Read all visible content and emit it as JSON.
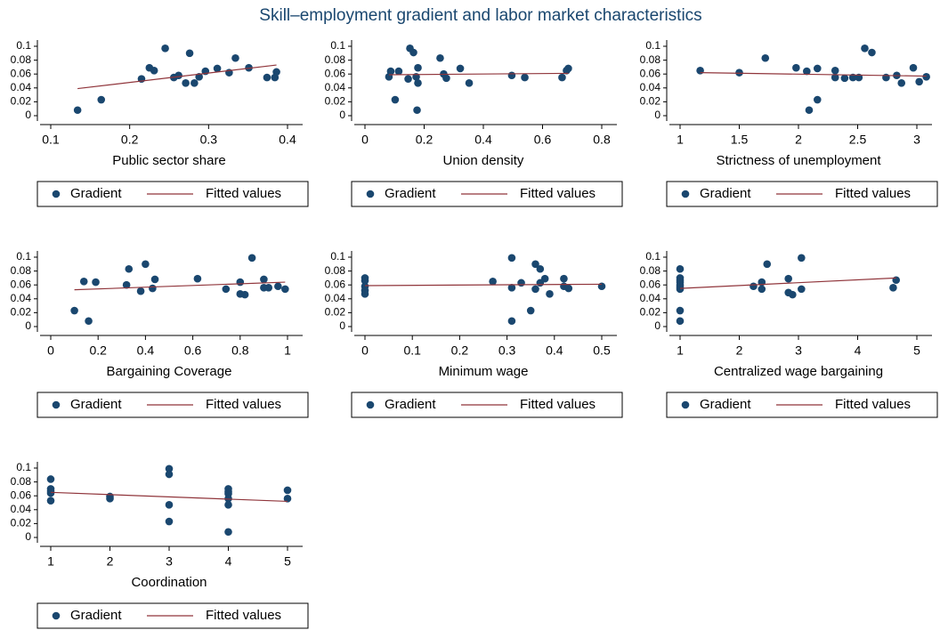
{
  "title": "Skill–employment gradient and labor market characteristics",
  "chart_data": [
    {
      "type": "scatter",
      "xlabel": "Public sector share",
      "xlim": [
        0.1,
        0.4
      ],
      "xticks": [
        0.1,
        0.2,
        0.3,
        0.4
      ],
      "ylim": [
        0,
        0.1
      ],
      "yticks": [
        0,
        0.02,
        0.04,
        0.06,
        0.08,
        0.1
      ],
      "legend": "bottom",
      "series": [
        {
          "name": "Gradient",
          "color": "#1a476f",
          "x": [
            0.134,
            0.164,
            0.215,
            0.225,
            0.231,
            0.245,
            0.256,
            0.262,
            0.271,
            0.276,
            0.282,
            0.288,
            0.296,
            0.311,
            0.326,
            0.334,
            0.351,
            0.374,
            0.384,
            0.386
          ],
          "values": [
            0.008,
            0.023,
            0.053,
            0.069,
            0.065,
            0.097,
            0.055,
            0.058,
            0.047,
            0.09,
            0.047,
            0.056,
            0.064,
            0.068,
            0.062,
            0.083,
            0.069,
            0.055,
            0.055,
            0.063
          ]
        },
        {
          "name": "Fitted values",
          "color": "#90353b",
          "type": "line",
          "x": [
            0.134,
            0.386
          ],
          "values": [
            0.039,
            0.073
          ]
        }
      ]
    },
    {
      "type": "scatter",
      "xlabel": "Union density",
      "xlim": [
        0,
        0.8
      ],
      "xticks": [
        0,
        0.2,
        0.4,
        0.6,
        0.8
      ],
      "ylim": [
        0,
        0.1
      ],
      "yticks": [
        0,
        0.02,
        0.04,
        0.06,
        0.08,
        0.1
      ],
      "legend": "bottom",
      "series": [
        {
          "name": "Gradient",
          "color": "#1a476f",
          "x": [
            0.081,
            0.087,
            0.102,
            0.114,
            0.146,
            0.152,
            0.164,
            0.173,
            0.176,
            0.179,
            0.179,
            0.254,
            0.266,
            0.275,
            0.322,
            0.352,
            0.496,
            0.54,
            0.666,
            0.681,
            0.687
          ],
          "values": [
            0.056,
            0.064,
            0.023,
            0.064,
            0.053,
            0.097,
            0.091,
            0.056,
            0.008,
            0.069,
            0.047,
            0.083,
            0.06,
            0.054,
            0.068,
            0.047,
            0.058,
            0.055,
            0.055,
            0.065,
            0.068
          ]
        },
        {
          "name": "Fitted values",
          "color": "#90353b",
          "type": "line",
          "x": [
            0.081,
            0.687
          ],
          "values": [
            0.059,
            0.061
          ]
        }
      ]
    },
    {
      "type": "scatter",
      "xlabel": "Strictness of unemployment",
      "xlim": [
        1,
        3
      ],
      "xticks": [
        1,
        1.5,
        2,
        2.5,
        3
      ],
      "ylim": [
        0,
        0.1
      ],
      "yticks": [
        0,
        0.02,
        0.04,
        0.06,
        0.08,
        0.1
      ],
      "legend": "bottom",
      "series": [
        {
          "name": "Gradient",
          "color": "#1a476f",
          "x": [
            1.17,
            1.5,
            1.72,
            1.98,
            2.07,
            2.09,
            2.16,
            2.16,
            2.31,
            2.31,
            2.39,
            2.46,
            2.51,
            2.56,
            2.62,
            2.74,
            2.83,
            2.87,
            2.97,
            3.02,
            3.08
          ],
          "values": [
            0.065,
            0.062,
            0.083,
            0.069,
            0.064,
            0.008,
            0.068,
            0.023,
            0.065,
            0.055,
            0.054,
            0.055,
            0.055,
            0.097,
            0.091,
            0.055,
            0.058,
            0.047,
            0.069,
            0.049,
            0.056
          ]
        },
        {
          "name": "Fitted values",
          "color": "#90353b",
          "type": "line",
          "x": [
            1.17,
            3.08
          ],
          "values": [
            0.062,
            0.057
          ]
        }
      ]
    },
    {
      "type": "scatter",
      "xlabel": "Bargaining Coverage",
      "xlim": [
        0,
        1
      ],
      "xticks": [
        0,
        0.2,
        0.4,
        0.6,
        0.8,
        1
      ],
      "ylim": [
        0,
        0.1
      ],
      "yticks": [
        0,
        0.02,
        0.04,
        0.06,
        0.08,
        0.1
      ],
      "legend": "bottom",
      "series": [
        {
          "name": "Gradient",
          "color": "#1a476f",
          "x": [
            0.1,
            0.14,
            0.16,
            0.19,
            0.32,
            0.33,
            0.38,
            0.4,
            0.43,
            0.44,
            0.62,
            0.74,
            0.8,
            0.8,
            0.82,
            0.85,
            0.9,
            0.9,
            0.92,
            0.96,
            0.99
          ],
          "values": [
            0.023,
            0.065,
            0.008,
            0.064,
            0.06,
            0.083,
            0.051,
            0.09,
            0.055,
            0.068,
            0.069,
            0.054,
            0.064,
            0.047,
            0.046,
            0.099,
            0.068,
            0.056,
            0.056,
            0.058,
            0.054
          ]
        },
        {
          "name": "Fitted values",
          "color": "#90353b",
          "type": "line",
          "x": [
            0.1,
            0.99
          ],
          "values": [
            0.053,
            0.064
          ]
        }
      ]
    },
    {
      "type": "scatter",
      "xlabel": "Minimum wage",
      "xlim": [
        0,
        0.5
      ],
      "xticks": [
        0,
        0.1,
        0.2,
        0.3,
        0.4,
        0.5
      ],
      "ylim": [
        0,
        0.1
      ],
      "yticks": [
        0,
        0.02,
        0.04,
        0.06,
        0.08,
        0.1
      ],
      "legend": "bottom",
      "series": [
        {
          "name": "Gradient",
          "color": "#1a476f",
          "x": [
            0,
            0,
            0,
            0,
            0,
            0.27,
            0.31,
            0.31,
            0.31,
            0.33,
            0.35,
            0.36,
            0.36,
            0.37,
            0.37,
            0.38,
            0.39,
            0.42,
            0.42,
            0.43,
            0.5
          ],
          "values": [
            0.07,
            0.066,
            0.058,
            0.052,
            0.047,
            0.065,
            0.099,
            0.056,
            0.008,
            0.063,
            0.023,
            0.09,
            0.054,
            0.083,
            0.063,
            0.069,
            0.047,
            0.069,
            0.058,
            0.055,
            0.058
          ]
        },
        {
          "name": "Fitted values",
          "color": "#90353b",
          "type": "line",
          "x": [
            0,
            0.5
          ],
          "values": [
            0.059,
            0.061
          ]
        }
      ]
    },
    {
      "type": "scatter",
      "xlabel": "Centralized wage bargaining",
      "xlim": [
        1,
        5
      ],
      "xticks": [
        1,
        2,
        3,
        4,
        5
      ],
      "ylim": [
        0,
        0.1
      ],
      "yticks": [
        0,
        0.02,
        0.04,
        0.06,
        0.08,
        0.1
      ],
      "legend": "bottom",
      "series": [
        {
          "name": "Gradient",
          "color": "#1a476f",
          "x": [
            1,
            1,
            1,
            1,
            1,
            1,
            1,
            1,
            1,
            2.24,
            2.38,
            2.38,
            2.47,
            2.83,
            2.83,
            2.9,
            3.05,
            3.05,
            4.6,
            4.65
          ],
          "values": [
            0.083,
            0.07,
            0.067,
            0.064,
            0.06,
            0.057,
            0.054,
            0.023,
            0.008,
            0.058,
            0.064,
            0.054,
            0.09,
            0.069,
            0.049,
            0.046,
            0.099,
            0.054,
            0.056,
            0.067
          ]
        },
        {
          "name": "Fitted values",
          "color": "#90353b",
          "type": "line",
          "x": [
            1,
            4.65
          ],
          "values": [
            0.055,
            0.07
          ]
        }
      ]
    },
    {
      "type": "scatter",
      "xlabel": "Coordination",
      "xlim": [
        1,
        5
      ],
      "xticks": [
        1,
        2,
        3,
        4,
        5
      ],
      "ylim": [
        0,
        0.1
      ],
      "yticks": [
        0,
        0.02,
        0.04,
        0.06,
        0.08,
        0.1
      ],
      "legend": "bottom",
      "series": [
        {
          "name": "Gradient",
          "color": "#1a476f",
          "x": [
            1,
            1,
            1,
            1,
            1,
            2,
            2,
            3,
            3,
            3,
            3,
            4,
            4,
            4,
            4,
            4,
            4,
            5,
            5
          ],
          "values": [
            0.084,
            0.07,
            0.067,
            0.064,
            0.053,
            0.059,
            0.056,
            0.099,
            0.091,
            0.047,
            0.023,
            0.07,
            0.066,
            0.063,
            0.056,
            0.047,
            0.008,
            0.068,
            0.056
          ]
        },
        {
          "name": "Fitted values",
          "color": "#90353b",
          "type": "line",
          "x": [
            1,
            5
          ],
          "values": [
            0.065,
            0.052
          ]
        }
      ]
    }
  ]
}
